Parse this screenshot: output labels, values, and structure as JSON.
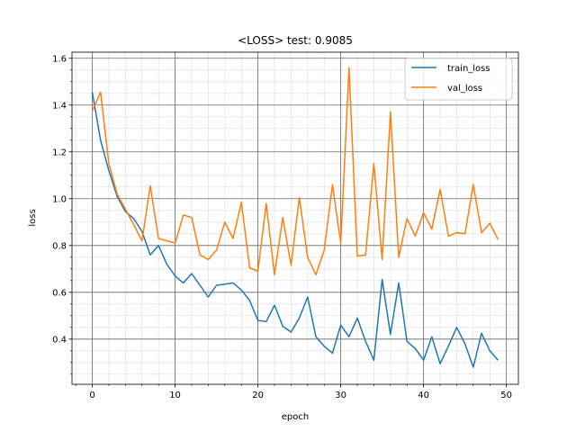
{
  "chart_data": {
    "type": "line",
    "title": "<LOSS> test: 0.9085",
    "xlabel": "epoch",
    "ylabel": "loss",
    "xlim": [
      -2.45,
      51.45
    ],
    "ylim": [
      0.207,
      1.626
    ],
    "xticks": [
      0,
      10,
      20,
      30,
      40,
      50
    ],
    "yticks": [
      0.4,
      0.6,
      0.8,
      1.0,
      1.2,
      1.4,
      1.6
    ],
    "ytick_labels": [
      "0.4",
      "0.6",
      "0.8",
      "1.0",
      "1.2",
      "1.4",
      "1.6"
    ],
    "grid": true,
    "minor_grid": true,
    "legend_position": "top-right",
    "x": [
      0,
      1,
      2,
      3,
      4,
      5,
      6,
      7,
      8,
      9,
      10,
      11,
      12,
      13,
      14,
      15,
      16,
      17,
      18,
      19,
      20,
      21,
      22,
      23,
      24,
      25,
      26,
      27,
      28,
      29,
      30,
      31,
      32,
      33,
      34,
      35,
      36,
      37,
      38,
      39,
      40,
      41,
      42,
      43,
      44,
      45,
      46,
      47,
      48,
      49
    ],
    "series": [
      {
        "name": "train_loss",
        "color": "#1f77b4",
        "values": [
          1.455,
          1.25,
          1.12,
          1.01,
          0.945,
          0.915,
          0.86,
          0.76,
          0.8,
          0.72,
          0.67,
          0.64,
          0.68,
          0.63,
          0.58,
          0.63,
          0.635,
          0.64,
          0.61,
          0.565,
          0.48,
          0.475,
          0.545,
          0.455,
          0.43,
          0.49,
          0.58,
          0.41,
          0.37,
          0.34,
          0.46,
          0.41,
          0.49,
          0.39,
          0.31,
          0.655,
          0.42,
          0.64,
          0.39,
          0.36,
          0.31,
          0.41,
          0.295,
          0.37,
          0.45,
          0.38,
          0.28,
          0.425,
          0.35,
          0.31
        ]
      },
      {
        "name": "val_loss",
        "color": "#ff7f0e",
        "values": [
          1.375,
          1.455,
          1.15,
          1.02,
          0.955,
          0.89,
          0.82,
          1.055,
          0.83,
          0.82,
          0.81,
          0.93,
          0.92,
          0.76,
          0.74,
          0.78,
          0.9,
          0.83,
          0.985,
          0.705,
          0.69,
          0.98,
          0.675,
          0.92,
          0.715,
          1.005,
          0.75,
          0.675,
          0.78,
          1.06,
          0.81,
          1.56,
          0.755,
          0.76,
          1.15,
          0.74,
          1.37,
          0.75,
          0.915,
          0.84,
          0.94,
          0.87,
          1.04,
          0.84,
          0.855,
          0.85,
          1.06,
          0.855,
          0.895,
          0.825
        ]
      }
    ]
  }
}
